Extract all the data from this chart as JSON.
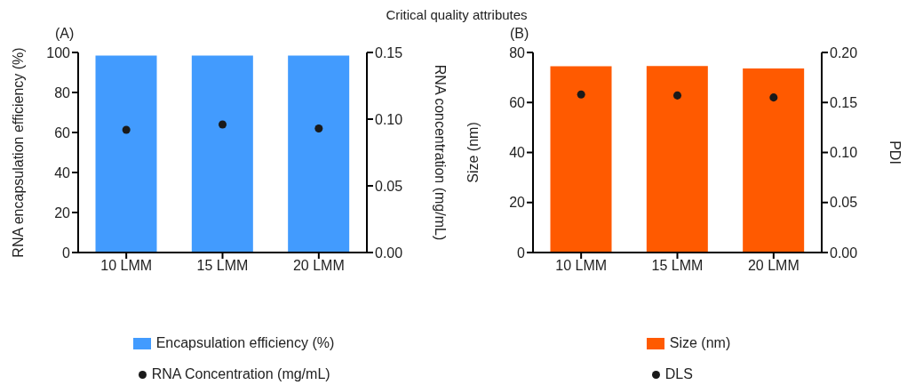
{
  "chart_data": [
    {
      "type": "bar",
      "title": "Critical quality attributes",
      "subtitle": "(A)",
      "categories": [
        "10 LMM",
        "15 LMM",
        "20 LMM"
      ],
      "ylabel": "RNA encapsulation efficiency (%)",
      "y2label": "RNA concentration (mg/mL)",
      "ylim": [
        0,
        100
      ],
      "yticks": [
        0,
        20,
        40,
        60,
        80,
        100
      ],
      "y2lim": [
        0,
        0.15
      ],
      "y2ticks": [
        {
          "value": 0,
          "label": "0.00"
        },
        {
          "value": 0.05,
          "label": "0.05"
        },
        {
          "value": 0.1,
          "label": "0.10"
        },
        {
          "value": 0.15,
          "label": "0.15"
        }
      ],
      "legend": "bottom",
      "marker": "circle",
      "series": [
        {
          "name": "Encapsulation efficiency (%)",
          "color": "#429bfe",
          "values": [
            98.5,
            98.5,
            98.5
          ]
        },
        {
          "name": "RNA Concentration (mg/mL)",
          "type": "scatter",
          "axis": "y2",
          "color": "#1a1a1a",
          "values": [
            0.092,
            0.096,
            0.093
          ]
        }
      ]
    },
    {
      "type": "bar",
      "subtitle": "(B)",
      "categories": [
        "10 LMM",
        "15 LMM",
        "20 LMM"
      ],
      "ylabel": "Size (nm)",
      "y2label": "PDI",
      "ylim": [
        0,
        80
      ],
      "yticks": [
        0,
        20,
        40,
        60,
        80
      ],
      "y2lim": [
        0,
        0.2
      ],
      "y2ticks": [
        {
          "value": 0,
          "label": "0.00"
        },
        {
          "value": 0.05,
          "label": "0.05"
        },
        {
          "value": 0.1,
          "label": "0.10"
        },
        {
          "value": 0.15,
          "label": "0.15"
        },
        {
          "value": 0.2,
          "label": "0.20"
        }
      ],
      "legend": "bottom",
      "marker": "circle",
      "series": [
        {
          "name": "Size (nm)",
          "color": "#ff5a00",
          "values": [
            74.5,
            74.6,
            73.6
          ]
        },
        {
          "name": "DLS",
          "type": "scatter",
          "axis": "y2",
          "color": "#1a1a1a",
          "values": [
            0.158,
            0.157,
            0.155
          ]
        }
      ]
    }
  ]
}
